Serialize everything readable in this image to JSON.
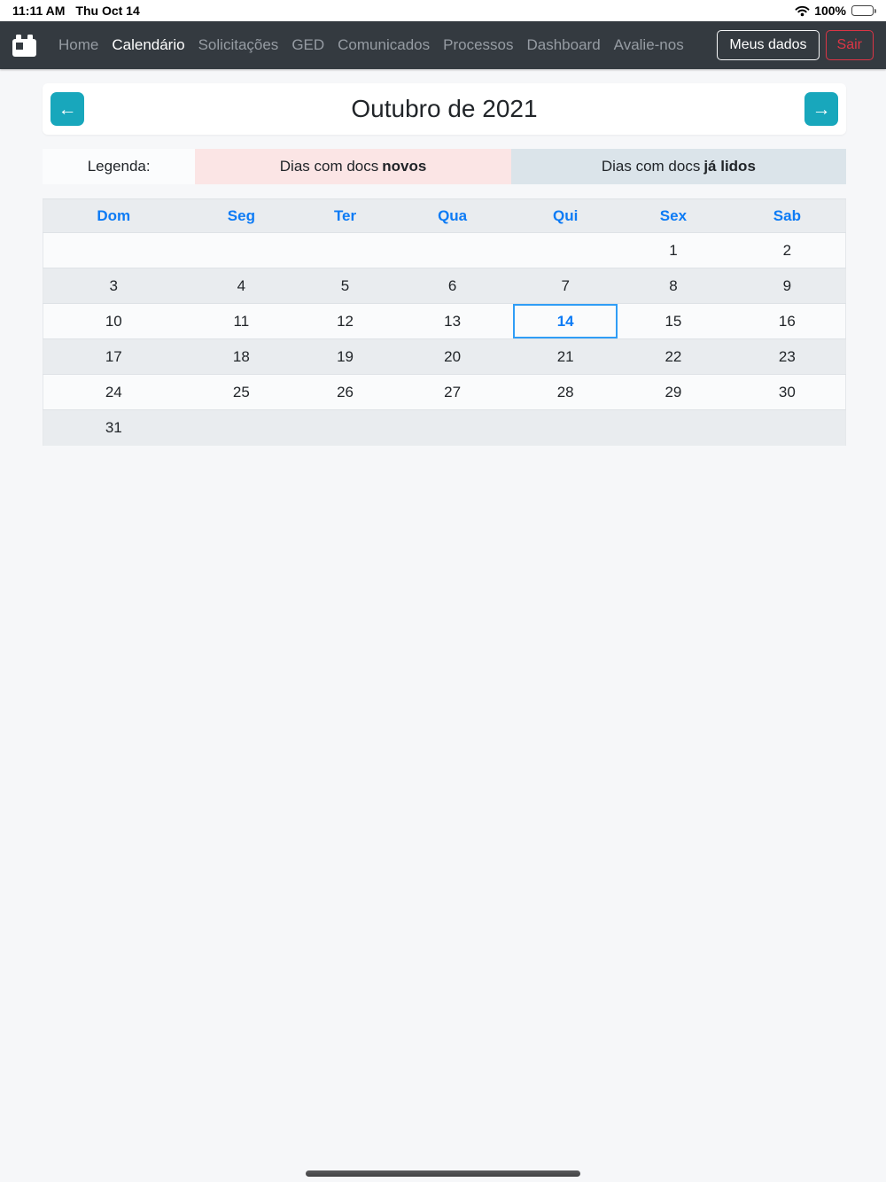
{
  "status_bar": {
    "time": "11:11 AM",
    "date": "Thu Oct 14",
    "battery_percent": "100%"
  },
  "navbar": {
    "items": [
      {
        "id": "home",
        "label": "Home",
        "active": false
      },
      {
        "id": "calendario",
        "label": "Calendário",
        "active": true
      },
      {
        "id": "solicitacoes",
        "label": "Solicitações",
        "active": false
      },
      {
        "id": "ged",
        "label": "GED",
        "active": false
      },
      {
        "id": "comunicados",
        "label": "Comunicados",
        "active": false
      },
      {
        "id": "processos",
        "label": "Processos",
        "active": false
      },
      {
        "id": "dashboard",
        "label": "Dashboard",
        "active": false
      },
      {
        "id": "avalie-nos",
        "label": "Avalie-nos",
        "active": false
      }
    ],
    "meus_dados_label": "Meus dados",
    "sair_label": "Sair"
  },
  "month_nav": {
    "title": "Outubro de 2021",
    "prev_icon": "←",
    "next_icon": "→"
  },
  "legend": {
    "label": "Legenda:",
    "new_docs": {
      "prefix": "Dias com docs",
      "bold": "novos"
    },
    "read_docs": {
      "prefix": "Dias com docs",
      "bold": "já lidos"
    }
  },
  "calendar": {
    "weekdays": [
      "Dom",
      "Seg",
      "Ter",
      "Qua",
      "Qui",
      "Sex",
      "Sab"
    ],
    "rows": [
      [
        "",
        "",
        "",
        "",
        "",
        "1",
        "2"
      ],
      [
        "3",
        "4",
        "5",
        "6",
        "7",
        "8",
        "9"
      ],
      [
        "10",
        "11",
        "12",
        "13",
        "14",
        "15",
        "16"
      ],
      [
        "17",
        "18",
        "19",
        "20",
        "21",
        "22",
        "23"
      ],
      [
        "24",
        "25",
        "26",
        "27",
        "28",
        "29",
        "30"
      ],
      [
        "31",
        "",
        "",
        "",
        "",
        "",
        ""
      ]
    ],
    "selected_day": "14"
  },
  "colors": {
    "accent_teal": "#18a7bc",
    "link_blue": "#0d7bf5",
    "danger_red": "#dc3545",
    "navbar_dark": "#343a40",
    "legend_pink": "#fbe5e5",
    "legend_blue": "#dbe4ea",
    "row_gray": "#e9ecef"
  }
}
